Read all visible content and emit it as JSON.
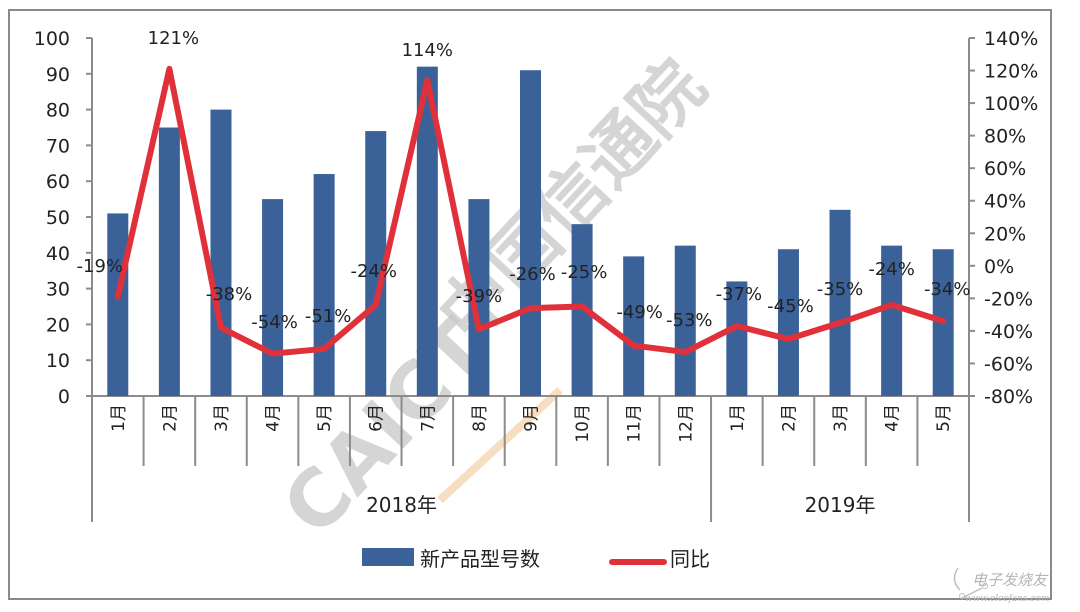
{
  "chart_data": {
    "type": "bar+line",
    "title": "",
    "categories": [
      "1月",
      "2月",
      "3月",
      "4月",
      "5月",
      "6月",
      "7月",
      "8月",
      "9月",
      "10月",
      "11月",
      "12月",
      "1月",
      "2月",
      "3月",
      "4月",
      "5月"
    ],
    "groups": [
      {
        "label": "2018年",
        "start": 0,
        "end": 11
      },
      {
        "label": "2019年",
        "start": 12,
        "end": 16
      }
    ],
    "series": [
      {
        "name": "新产品型号数",
        "type": "bar",
        "axis": "left",
        "color": "#3b6199",
        "values": [
          51,
          75,
          80,
          55,
          62,
          74,
          92,
          55,
          91,
          48,
          39,
          42,
          32,
          41,
          52,
          42,
          41
        ]
      },
      {
        "name": "同比",
        "type": "line",
        "axis": "right",
        "color": "#e0313b",
        "values": [
          -19,
          121,
          -38,
          -54,
          -51,
          -24,
          114,
          -39,
          -26,
          -25,
          -49,
          -53,
          -37,
          -45,
          -35,
          -24,
          -34
        ],
        "labels": [
          "-19%",
          "121%",
          "-38%",
          "-54%",
          "-51%",
          "-24%",
          "114%",
          "-39%",
          "-26%",
          "-25%",
          "-49%",
          "-53%",
          "-37%",
          "-45%",
          "-35%",
          "-24%",
          "-34%"
        ]
      }
    ],
    "y_left": {
      "min": 0,
      "max": 100,
      "step": 10,
      "ticks": [
        "0",
        "10",
        "20",
        "30",
        "40",
        "50",
        "60",
        "70",
        "80",
        "90",
        "100"
      ]
    },
    "y_right": {
      "min": -80,
      "max": 140,
      "step": 20,
      "ticks": [
        "-80%",
        "-60%",
        "-40%",
        "-20%",
        "0%",
        "20%",
        "40%",
        "60%",
        "80%",
        "100%",
        "120%",
        "140%"
      ]
    },
    "xlabel": "",
    "ylabel": "",
    "grid": false,
    "legend_position": "bottom"
  },
  "legend": {
    "bar_label": "新产品型号数",
    "line_label": "同比"
  },
  "watermarks": {
    "center_text": "中国信通院",
    "center_logo": "CAICT",
    "corner_name": "电子发烧友",
    "corner_url": "www.elecfans.com"
  },
  "colors": {
    "bar": "#3b6199",
    "line": "#e0313b",
    "axis": "#8c8c8c"
  }
}
